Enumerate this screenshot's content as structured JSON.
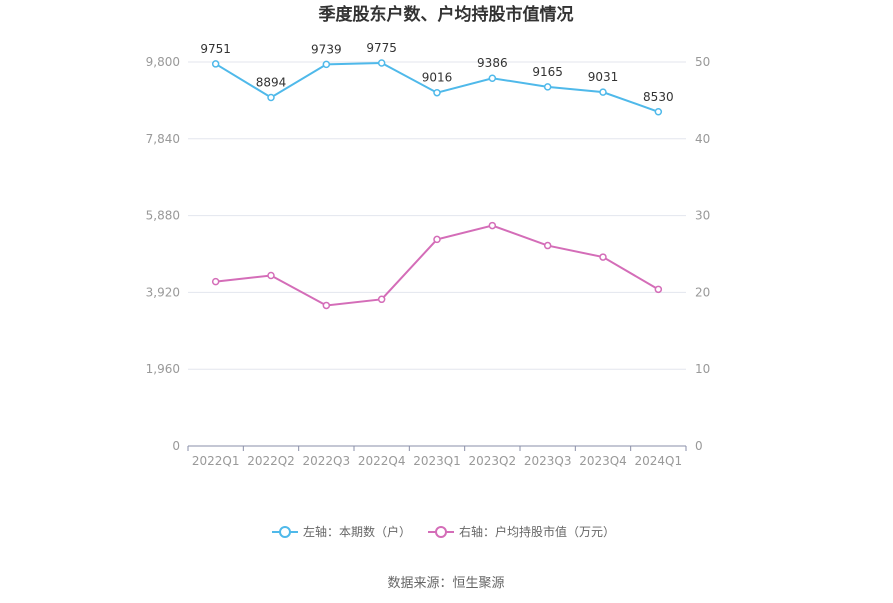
{
  "chart_data": {
    "type": "line",
    "title": "季度股东户数、户均持股市值情况",
    "categories": [
      "2022Q1",
      "2022Q2",
      "2022Q3",
      "2022Q4",
      "2023Q1",
      "2023Q2",
      "2023Q3",
      "2023Q4",
      "2024Q1"
    ],
    "y_left": {
      "ticks": [
        "0",
        "1,960",
        "3,920",
        "5,880",
        "7,840",
        "9,800"
      ],
      "ylim": [
        0,
        9800
      ]
    },
    "y_right": {
      "ticks": [
        "0",
        "10",
        "20",
        "30",
        "40",
        "50"
      ],
      "ylim": [
        0,
        50
      ]
    },
    "series": [
      {
        "name": "左轴：本期数（户）",
        "axis": "left",
        "color": "#4fb9ea",
        "values": [
          9751,
          8894,
          9739,
          9775,
          9016,
          9386,
          9165,
          9031,
          8530
        ],
        "labels": [
          "9751",
          "8894",
          "9739",
          "9775",
          "9016",
          "9386",
          "9165",
          "9031",
          "8530"
        ]
      },
      {
        "name": "右轴：户均持股市值（万元）",
        "axis": "right",
        "color": "#d46db8",
        "values": [
          21.4,
          22.2,
          18.3,
          19.1,
          26.9,
          28.7,
          26.1,
          24.6,
          20.4
        ]
      }
    ],
    "grid": true,
    "legend_position": "bottom"
  },
  "source": "数据来源：恒生聚源"
}
